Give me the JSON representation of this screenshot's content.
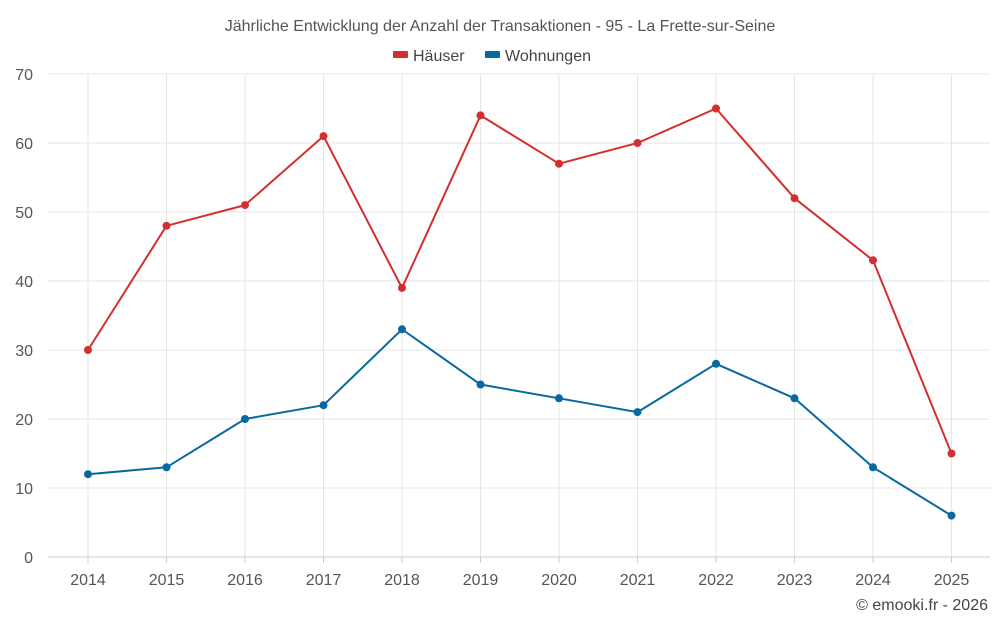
{
  "chart_data": {
    "type": "line",
    "title": "Jährliche Entwicklung der Anzahl der Transaktionen - 95 - La Frette-sur-Seine",
    "xlabel": "",
    "ylabel": "",
    "categories": [
      "2014",
      "2015",
      "2016",
      "2017",
      "2018",
      "2019",
      "2020",
      "2021",
      "2022",
      "2023",
      "2024",
      "2025"
    ],
    "ylim": [
      0,
      70
    ],
    "yticks": [
      0,
      10,
      20,
      30,
      40,
      50,
      60,
      70
    ],
    "grid": true,
    "legend_position": "top-center",
    "series": [
      {
        "name": "Häuser",
        "color": "#d32f2f",
        "values": [
          30,
          48,
          51,
          61,
          39,
          64,
          57,
          60,
          65,
          52,
          43,
          15
        ]
      },
      {
        "name": "Wohnungen",
        "color": "#0868a0",
        "values": [
          12,
          13,
          20,
          22,
          33,
          25,
          23,
          21,
          28,
          23,
          13,
          6
        ]
      }
    ]
  },
  "credit": "© emooki.fr - 2026"
}
